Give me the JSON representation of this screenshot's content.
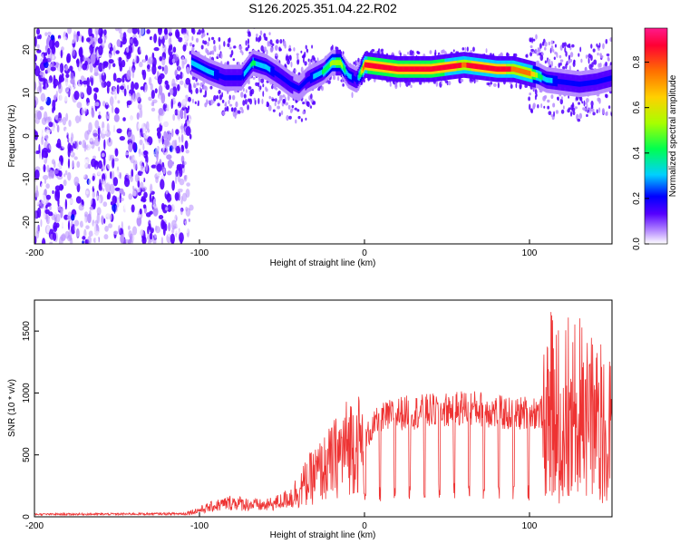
{
  "title": "S126.2025.351.04.22.R02",
  "chart_data": [
    {
      "type": "heatmap",
      "xlabel": "Height of straight line (km)",
      "ylabel": "Frequency (Hz)",
      "xlim": [
        -200,
        150
      ],
      "ylim": [
        -25,
        25
      ],
      "xticks": [
        -200,
        -100,
        0,
        100
      ],
      "yticks": [
        20,
        10,
        0,
        -10,
        -20
      ],
      "colorbar": {
        "label": "Normalized spectral amplitude",
        "range": [
          0,
          0.95
        ],
        "ticks": [
          0.0,
          0.2,
          0.4,
          0.6,
          0.8
        ],
        "colors": [
          "#ffffff",
          "#b68cff",
          "#5500ff",
          "#0000ff",
          "#00d0ff",
          "#00ff50",
          "#a8ff00",
          "#ffd000",
          "#ff7000",
          "#ff0033",
          "#ff1a8c"
        ]
      },
      "ridge": {
        "x": [
          -105,
          -95,
          -85,
          -75,
          -68,
          -60,
          -52,
          -45,
          -40,
          -35,
          -30,
          -25,
          -20,
          -15,
          -10,
          -5,
          0,
          10,
          20,
          30,
          40,
          50,
          60,
          70,
          80,
          90,
          100,
          105,
          110,
          120,
          130,
          140,
          150
        ],
        "frequency": [
          17,
          15,
          13.5,
          13.5,
          17,
          16,
          14,
          12,
          11,
          13,
          14,
          15,
          17,
          17,
          14,
          13,
          16.5,
          16,
          15.5,
          15.5,
          15.5,
          16,
          16.5,
          16,
          15.5,
          15.5,
          14.5,
          14,
          13,
          12.5,
          12,
          12.5,
          13.5
        ],
        "amplitude": [
          0.35,
          0.35,
          0.3,
          0.3,
          0.45,
          0.35,
          0.3,
          0.3,
          0.25,
          0.3,
          0.35,
          0.45,
          0.55,
          0.6,
          0.35,
          0.3,
          0.85,
          0.88,
          0.9,
          0.88,
          0.88,
          0.85,
          0.8,
          0.85,
          0.85,
          0.8,
          0.75,
          0.5,
          0.35,
          0.3,
          0.3,
          0.3,
          0.3
        ]
      }
    },
    {
      "type": "line",
      "xlabel": "Height of straight line (km)",
      "ylabel": "SNR (10 * v/v)",
      "xlim": [
        -200,
        150
      ],
      "ylim": [
        0,
        1750
      ],
      "xticks": [
        -200,
        -100,
        0,
        100
      ],
      "yticks": [
        0,
        500,
        1000,
        1500
      ],
      "color": "#ee3333",
      "envelope": {
        "x": [
          -200,
          -150,
          -110,
          -100,
          -90,
          -80,
          -70,
          -60,
          -50,
          -45,
          -40,
          -30,
          -25,
          -20,
          -15,
          -10,
          -5,
          0,
          5,
          10,
          20,
          30,
          40,
          50,
          60,
          70,
          80,
          90,
          100,
          108,
          112,
          120,
          130,
          140,
          150
        ],
        "snr": [
          20,
          22,
          25,
          60,
          100,
          130,
          110,
          100,
          140,
          180,
          250,
          400,
          450,
          520,
          600,
          680,
          720,
          650,
          750,
          820,
          870,
          880,
          890,
          900,
          920,
          910,
          880,
          860,
          880,
          880,
          1000,
          1000,
          950,
          900,
          850
        ]
      }
    }
  ]
}
